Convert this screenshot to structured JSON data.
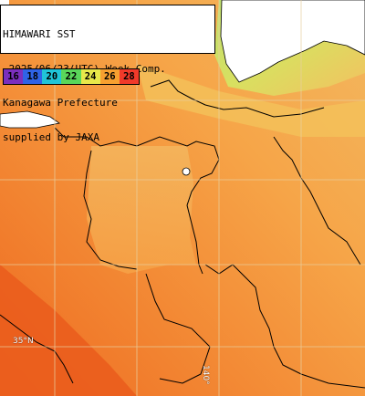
{
  "title": {
    "line1": "HIMAWARI SST",
    "line2": "~2025/06/23(UTC) Week Comp.",
    "line3": "Kanagawa Prefecture",
    "line4": "supplied by JAXA"
  },
  "legend": {
    "labels": [
      "16",
      "18",
      "20",
      "22",
      "24",
      "26",
      "28"
    ],
    "colors": [
      "#7b2fbe",
      "#2f63e6",
      "#20c4d8",
      "#5ad65a",
      "#e8e84a",
      "#f7a030",
      "#f03a2a"
    ]
  },
  "map": {
    "land_color": "#ffffff",
    "coast_color": "#000000",
    "grid_color": "#e8d0a0",
    "sea_warm_color": "#f07a28",
    "sea_mid_color": "#f6a040",
    "sea_cool_color": "#f6c060",
    "sea_green_color": "#b8e070"
  },
  "grid_labels": {
    "lat": "35°N",
    "lon": "140°"
  }
}
